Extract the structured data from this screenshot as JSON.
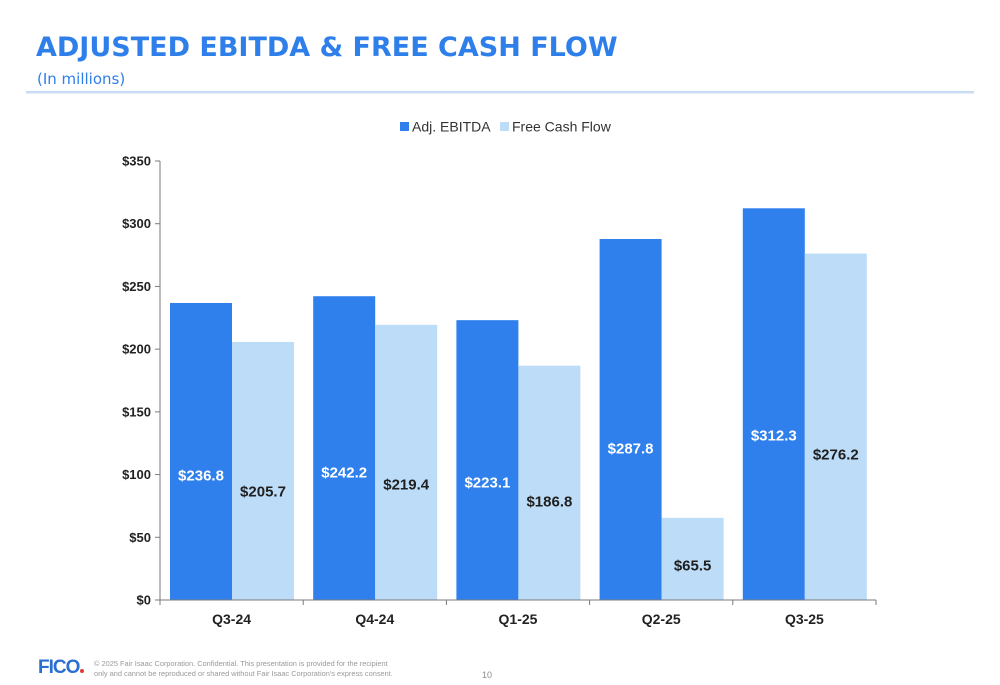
{
  "header": {
    "title": "ADJUSTED EBITDA & FREE CASH FLOW",
    "subtitle": "(In millions)"
  },
  "chart_data": {
    "type": "bar",
    "categories": [
      "Q3-24",
      "Q4-24",
      "Q1-25",
      "Q2-25",
      "Q3-25"
    ],
    "series": [
      {
        "name": "Adj. EBITDA",
        "color": "#2f80ed",
        "values": [
          236.8,
          242.2,
          223.1,
          287.8,
          312.3
        ],
        "labels": [
          "$236.8",
          "$242.2",
          "$223.1",
          "$287.8",
          "$312.3"
        ]
      },
      {
        "name": "Free Cash Flow",
        "color": "#bcdcf8",
        "values": [
          205.7,
          219.4,
          186.8,
          65.5,
          276.2
        ],
        "labels": [
          "$205.7",
          "$219.4",
          "$186.8",
          "$65.5",
          "$276.2"
        ]
      }
    ],
    "ylim": [
      0,
      350
    ],
    "yticks": [
      0,
      50,
      100,
      150,
      200,
      250,
      300,
      350
    ],
    "ytick_labels": [
      "$0",
      "$50",
      "$100",
      "$150",
      "$200",
      "$250",
      "$300",
      "$350"
    ],
    "legend_position": "top-center",
    "grid": false
  },
  "footer": {
    "logo": "FICO",
    "note": "© 2025 Fair Isaac Corporation. Confidential. This presentation is provided for the recipient only and cannot be reproduced or shared without Fair Isaac Corporation's express consent.",
    "page_number": "10"
  }
}
